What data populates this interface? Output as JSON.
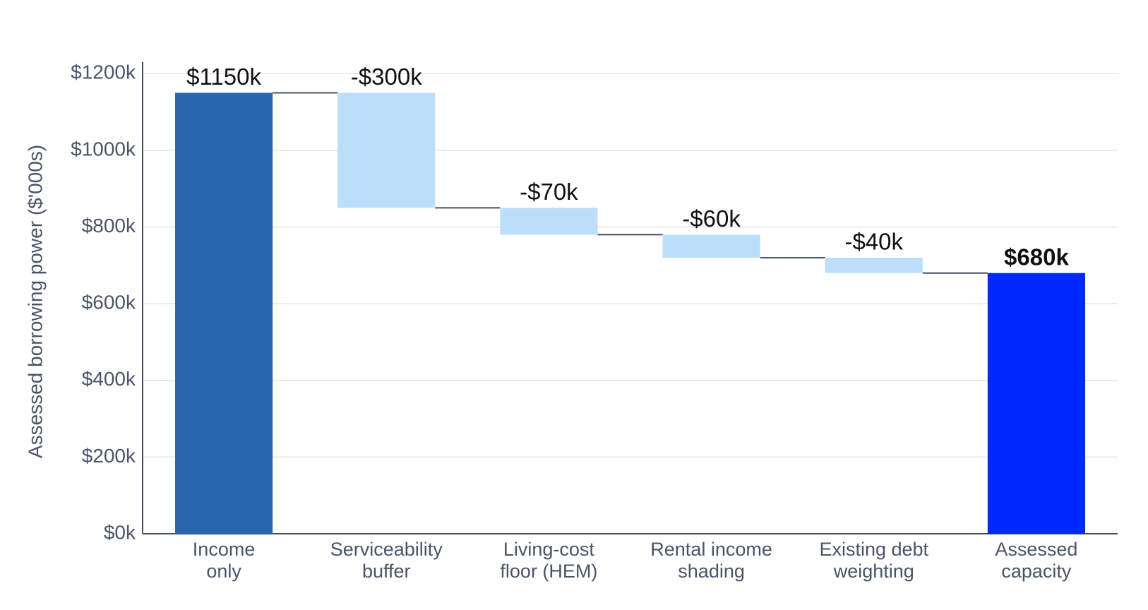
{
  "chart_data": {
    "type": "waterfall",
    "y_label": "Assessed borrowing power ($'000s)",
    "categories": [
      [
        "Income",
        "only"
      ],
      [
        "Serviceability",
        "buffer"
      ],
      [
        "Living-cost",
        "floor (HEM)"
      ],
      [
        "Rental income",
        "shading"
      ],
      [
        "Existing debt",
        "weighting"
      ],
      [
        "Assessed",
        "capacity"
      ]
    ],
    "measures": [
      "absolute",
      "relative",
      "relative",
      "relative",
      "relative",
      "total"
    ],
    "values": [
      1150,
      -300,
      -70,
      -60,
      -40,
      680
    ],
    "value_labels": [
      "$1150k",
      "-$300k",
      "-$70k",
      "-$60k",
      "-$40k",
      "$680k"
    ],
    "colors": [
      "#2a66b0",
      "#bbdefb",
      "#bbdefb",
      "#bbdefb",
      "#bbdefb",
      "#0029ff"
    ],
    "connector_color": "#4a5060",
    "ylim": [
      0,
      1230
    ],
    "yticks": [
      {
        "value": 0,
        "label": "$0k"
      },
      {
        "value": 200,
        "label": "$200k"
      },
      {
        "value": 400,
        "label": "$400k"
      },
      {
        "value": 600,
        "label": "$600k"
      },
      {
        "value": 800,
        "label": "$800k"
      },
      {
        "value": 1000,
        "label": "$1000k"
      },
      {
        "value": 1200,
        "label": "$1200k"
      }
    ],
    "grid": true
  }
}
